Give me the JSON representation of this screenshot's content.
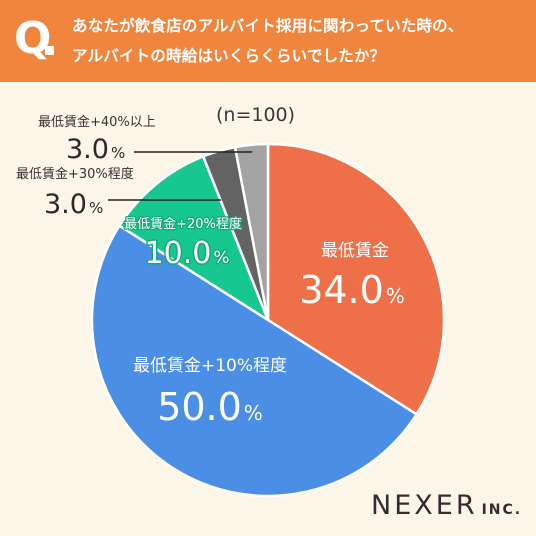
{
  "question": {
    "mark": "Q",
    "line1": "あなたが飲食店のアルバイト採用に関わっていた時の、",
    "line2": "アルバイトの時給はいくらくらいでしたか？"
  },
  "sample_size": "(n=100)",
  "brand": {
    "name": "NEXER",
    "suffix": "INC."
  },
  "colors": {
    "header": "#f0853e",
    "background": "#fbf6e8",
    "slice_min": "#ee7049",
    "slice_10": "#4a8ee6",
    "slice_20": "#16c78f",
    "slice_30": "#636363",
    "slice_40": "#a3a3a3"
  },
  "chart_data": {
    "type": "pie",
    "title": "あなたが飲食店のアルバイト採用に関わっていた時の、アルバイトの時給はいくらくらいでしたか？",
    "unit": "%",
    "slices": [
      {
        "label": "最低賃金",
        "value": 34.0,
        "display": "34.0",
        "color": "#ee7049"
      },
      {
        "label": "最低賃金+10%程度",
        "value": 50.0,
        "display": "50.0",
        "color": "#4a8ee6"
      },
      {
        "label": "最低賃金+20%程度",
        "value": 10.0,
        "display": "10.0",
        "color": "#16c78f"
      },
      {
        "label": "最低賃金+30%程度",
        "value": 3.0,
        "display": "3.0",
        "color": "#636363"
      },
      {
        "label": "最低賃金+40%以上",
        "value": 3.0,
        "display": "3.0",
        "color": "#a3a3a3"
      }
    ]
  }
}
